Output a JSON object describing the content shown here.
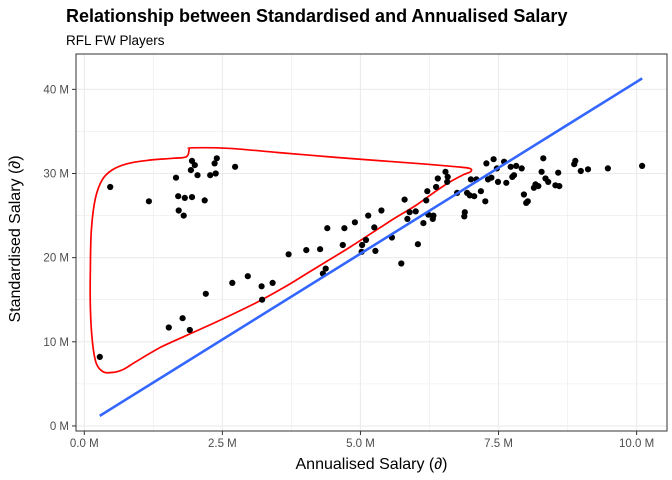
{
  "chart_data": {
    "type": "scatter",
    "title": "Relationship between Standardised and Annualised Salary",
    "subtitle": "RFL FW Players",
    "xlabel": "Annualised Salary (∂)",
    "ylabel": "Standardised Salary (∂)",
    "xlim": [
      -0.15,
      10.55
    ],
    "ylim": [
      -0.6,
      44.2
    ],
    "x_ticks": [
      {
        "value": 0.0,
        "label": "0.0 M"
      },
      {
        "value": 2.5,
        "label": "2.5 M"
      },
      {
        "value": 5.0,
        "label": "5.0 M"
      },
      {
        "value": 7.5,
        "label": "7.5 M"
      },
      {
        "value": 10.0,
        "label": "10.0 M"
      }
    ],
    "y_ticks": [
      {
        "value": 0,
        "label": "0 M"
      },
      {
        "value": 10,
        "label": "10 M"
      },
      {
        "value": 20,
        "label": "20 M"
      },
      {
        "value": 30,
        "label": "30 M"
      },
      {
        "value": 40,
        "label": "40 M"
      }
    ],
    "grid": true,
    "legend": "none",
    "colors": {
      "points": "#000000",
      "fit_line": "#3366ff",
      "outline": "#ff0000",
      "grid": "#ebebeb",
      "panel_border": "#333333"
    },
    "points": [
      [
        0.28,
        8.2
      ],
      [
        0.47,
        28.4
      ],
      [
        1.17,
        26.7
      ],
      [
        1.53,
        11.7
      ],
      [
        1.66,
        29.5
      ],
      [
        1.7,
        27.3
      ],
      [
        1.71,
        25.6
      ],
      [
        1.78,
        12.8
      ],
      [
        1.8,
        25.0
      ],
      [
        1.82,
        27.1
      ],
      [
        1.91,
        11.4
      ],
      [
        1.93,
        30.4
      ],
      [
        1.95,
        31.5
      ],
      [
        1.95,
        27.2
      ],
      [
        2.0,
        31.0
      ],
      [
        2.05,
        29.8
      ],
      [
        2.18,
        26.8
      ],
      [
        2.2,
        15.7
      ],
      [
        2.28,
        29.8
      ],
      [
        2.36,
        31.2
      ],
      [
        2.38,
        30.0
      ],
      [
        2.4,
        31.8
      ],
      [
        2.68,
        17.0
      ],
      [
        2.73,
        30.8
      ],
      [
        2.96,
        17.8
      ],
      [
        3.21,
        16.6
      ],
      [
        3.22,
        15.0
      ],
      [
        3.41,
        17.0
      ],
      [
        3.7,
        20.4
      ],
      [
        4.02,
        20.9
      ],
      [
        4.27,
        21.0
      ],
      [
        4.32,
        18.1
      ],
      [
        4.37,
        18.7
      ],
      [
        4.4,
        23.5
      ],
      [
        4.68,
        21.5
      ],
      [
        4.71,
        23.5
      ],
      [
        4.9,
        24.2
      ],
      [
        5.02,
        20.7
      ],
      [
        5.03,
        21.5
      ],
      [
        5.1,
        22.1
      ],
      [
        5.14,
        25.0
      ],
      [
        5.25,
        23.6
      ],
      [
        5.27,
        20.8
      ],
      [
        5.38,
        25.6
      ],
      [
        5.57,
        22.4
      ],
      [
        5.74,
        19.3
      ],
      [
        5.8,
        26.9
      ],
      [
        5.85,
        24.6
      ],
      [
        5.89,
        25.4
      ],
      [
        6.0,
        25.5
      ],
      [
        6.04,
        21.6
      ],
      [
        6.14,
        24.1
      ],
      [
        6.19,
        26.8
      ],
      [
        6.21,
        27.9
      ],
      [
        6.23,
        25.1
      ],
      [
        6.31,
        24.6
      ],
      [
        6.32,
        25.0
      ],
      [
        6.37,
        28.4
      ],
      [
        6.4,
        29.4
      ],
      [
        6.54,
        30.2
      ],
      [
        6.57,
        29.0
      ],
      [
        6.58,
        29.6
      ],
      [
        6.75,
        27.7
      ],
      [
        6.88,
        24.9
      ],
      [
        6.89,
        25.4
      ],
      [
        6.93,
        27.7
      ],
      [
        6.98,
        27.4
      ],
      [
        7.0,
        29.3
      ],
      [
        7.06,
        27.3
      ],
      [
        7.1,
        29.3
      ],
      [
        7.18,
        27.9
      ],
      [
        7.26,
        26.7
      ],
      [
        7.28,
        31.2
      ],
      [
        7.31,
        29.3
      ],
      [
        7.37,
        29.5
      ],
      [
        7.41,
        31.7
      ],
      [
        7.47,
        30.6
      ],
      [
        7.49,
        29.0
      ],
      [
        7.6,
        31.4
      ],
      [
        7.64,
        28.9
      ],
      [
        7.72,
        30.8
      ],
      [
        7.75,
        29.6
      ],
      [
        7.78,
        29.8
      ],
      [
        7.82,
        30.9
      ],
      [
        7.92,
        30.6
      ],
      [
        7.96,
        27.5
      ],
      [
        8.0,
        26.5
      ],
      [
        8.03,
        26.7
      ],
      [
        8.14,
        28.3
      ],
      [
        8.17,
        28.7
      ],
      [
        8.22,
        28.5
      ],
      [
        8.28,
        30.2
      ],
      [
        8.31,
        31.8
      ],
      [
        8.35,
        29.4
      ],
      [
        8.4,
        29.0
      ],
      [
        8.53,
        28.6
      ],
      [
        8.58,
        30.1
      ],
      [
        8.6,
        28.5
      ],
      [
        8.87,
        31.1
      ],
      [
        8.89,
        31.5
      ],
      [
        8.99,
        30.3
      ],
      [
        9.12,
        30.5
      ],
      [
        9.48,
        30.6
      ],
      [
        10.1,
        30.9
      ]
    ],
    "fit_line": {
      "x": [
        0.28,
        10.1
      ],
      "y": [
        1.2,
        41.3
      ]
    },
    "outline": [
      [
        1.9,
        32.9
      ],
      [
        1.95,
        33.05
      ],
      [
        2.6,
        33.0
      ],
      [
        3.5,
        32.5
      ],
      [
        4.5,
        31.95
      ],
      [
        5.5,
        31.45
      ],
      [
        6.2,
        31.1
      ],
      [
        6.75,
        30.8
      ],
      [
        6.98,
        30.6
      ],
      [
        7.0,
        30.25
      ],
      [
        6.88,
        29.9
      ],
      [
        6.7,
        29.3
      ],
      [
        6.5,
        28.5
      ],
      [
        6.3,
        27.6
      ],
      [
        6.0,
        26.2
      ],
      [
        5.6,
        24.6
      ],
      [
        5.2,
        22.9
      ],
      [
        4.8,
        21.2
      ],
      [
        4.4,
        19.6
      ],
      [
        4.0,
        18.0
      ],
      [
        3.6,
        16.4
      ],
      [
        3.1,
        14.6
      ],
      [
        2.5,
        12.7
      ],
      [
        1.9,
        10.9
      ],
      [
        1.4,
        9.4
      ],
      [
        0.95,
        7.7
      ],
      [
        0.7,
        6.7
      ],
      [
        0.5,
        6.35
      ],
      [
        0.34,
        6.45
      ],
      [
        0.22,
        7.4
      ],
      [
        0.15,
        9.8
      ],
      [
        0.11,
        14.0
      ],
      [
        0.11,
        19.0
      ],
      [
        0.13,
        23.5
      ],
      [
        0.2,
        27.0
      ],
      [
        0.32,
        29.2
      ],
      [
        0.5,
        30.4
      ],
      [
        0.8,
        31.2
      ],
      [
        1.2,
        31.6
      ],
      [
        1.6,
        31.8
      ],
      [
        1.85,
        32.0
      ],
      [
        1.9,
        32.9
      ]
    ]
  }
}
